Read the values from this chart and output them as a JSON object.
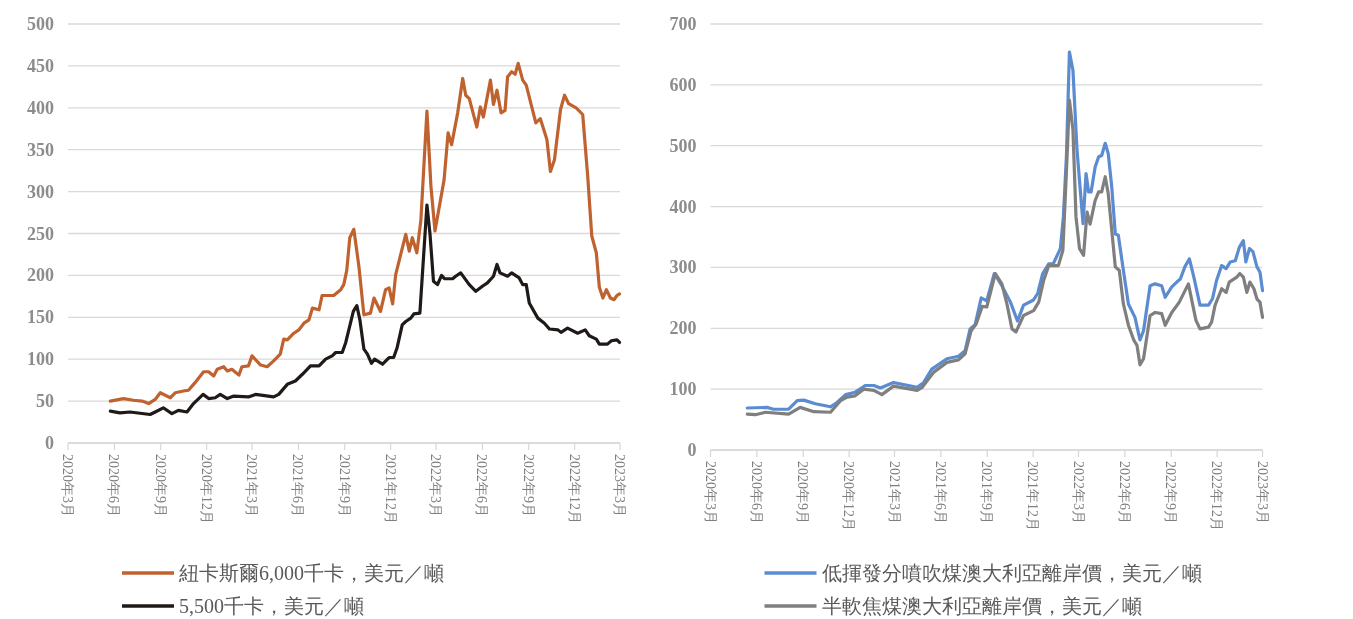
{
  "chart_data": [
    {
      "type": "line",
      "grid": "y",
      "legend": "bottom",
      "xlim": [
        "2020-03",
        "2023-03"
      ],
      "xticks": [
        {
          "value": "2020-03",
          "label": "2020年3月"
        },
        {
          "value": "2020-06",
          "label": "2020年6月"
        },
        {
          "value": "2020-09",
          "label": "2020年9月"
        },
        {
          "value": "2020-12",
          "label": "2020年12月"
        },
        {
          "value": "2021-03",
          "label": "2021年3月"
        },
        {
          "value": "2021-06",
          "label": "2021年6月"
        },
        {
          "value": "2021-09",
          "label": "2021年9月"
        },
        {
          "value": "2021-12",
          "label": "2021年12月"
        },
        {
          "value": "2022-03",
          "label": "2022年3月"
        },
        {
          "value": "2022-06",
          "label": "2022年6月"
        },
        {
          "value": "2022-09",
          "label": "2022年9月"
        },
        {
          "value": "2022-12",
          "label": "2022年12月"
        },
        {
          "value": "2023-03",
          "label": "2023年3月"
        }
      ],
      "ylim": [
        0,
        500
      ],
      "yticks": [
        0,
        50,
        100,
        150,
        200,
        250,
        300,
        350,
        400,
        450,
        500
      ],
      "series": [
        {
          "name": "紐卡斯爾6,000千卡，美元／噸",
          "color": "#c0622f",
          "x": [
            "2020-05-24",
            "2020-06-19",
            "2020-07-09",
            "2020-07-26",
            "2020-08-08",
            "2020-08-21",
            "2020-08-31",
            "2020-09-20",
            "2020-09-30",
            "2020-10-16",
            "2020-10-26",
            "2020-11-08",
            "2020-11-25",
            "2020-12-05",
            "2020-12-15",
            "2020-12-22",
            "2021-01-04",
            "2021-01-11",
            "2021-01-20",
            "2021-02-03",
            "2021-02-09",
            "2021-02-22",
            "2021-03-01",
            "2021-03-18",
            "2021-03-31",
            "2021-04-13",
            "2021-04-26",
            "2021-05-03",
            "2021-05-10",
            "2021-05-23",
            "2021-06-02",
            "2021-06-12",
            "2021-06-22",
            "2021-06-29",
            "2021-07-12",
            "2021-07-18",
            "2021-08-10",
            "2021-08-24",
            "2021-08-30",
            "2021-09-05",
            "2021-09-11",
            "2021-09-19",
            "2021-09-29",
            "2021-10-09",
            "2021-10-22",
            "2021-10-29",
            "2021-11-11",
            "2021-11-21",
            "2021-11-28",
            "2021-12-05",
            "2021-12-11",
            "2021-12-31",
            "2022-01-07",
            "2022-01-13",
            "2022-01-22",
            "2022-01-30",
            "2022-02-11",
            "2022-02-19",
            "2022-02-27",
            "2022-03-17",
            "2022-03-25",
            "2022-04-01",
            "2022-04-13",
            "2022-04-23",
            "2022-04-29",
            "2022-05-06",
            "2022-05-21",
            "2022-05-28",
            "2022-06-03",
            "2022-06-17",
            "2022-06-23",
            "2022-06-30",
            "2022-07-08",
            "2022-07-16",
            "2022-07-21",
            "2022-07-29",
            "2022-08-05",
            "2022-08-11",
            "2022-08-20",
            "2022-08-27",
            "2022-09-15",
            "2022-09-24",
            "2022-10-07",
            "2022-10-14",
            "2022-10-22",
            "2022-11-03",
            "2022-11-11",
            "2022-11-19",
            "2022-12-04",
            "2022-12-17",
            "2022-12-27",
            "2023-01-04",
            "2023-01-13",
            "2023-01-19",
            "2023-01-26",
            "2023-02-02",
            "2023-02-10",
            "2023-02-17",
            "2023-02-23",
            "2023-02-28"
          ],
          "values": [
            50,
            53,
            51,
            50,
            47,
            52,
            60,
            54,
            60,
            62,
            63,
            72,
            85,
            85,
            80,
            88,
            91,
            86,
            88,
            81,
            91,
            92,
            104,
            93,
            91,
            98,
            106,
            124,
            123,
            131,
            135,
            143,
            147,
            161,
            159,
            176,
            176,
            183,
            189,
            206,
            245,
            255,
            211,
            153,
            155,
            173,
            157,
            183,
            185,
            166,
            201,
            249,
            229,
            245,
            227,
            266,
            396,
            306,
            253,
            314,
            370,
            356,
            394,
            435,
            415,
            411,
            377,
            401,
            389,
            433,
            404,
            421,
            394,
            397,
            437,
            443,
            440,
            453,
            433,
            427,
            382,
            387,
            362,
            324,
            338,
            398,
            415,
            405,
            400,
            392,
            318,
            247,
            227,
            186,
            173,
            183,
            173,
            171,
            176,
            178
          ]
        },
        {
          "name": "5,500千卡，美元／噸",
          "color": "#1f1a17",
          "x": [
            "2020-05-24",
            "2020-06-12",
            "2020-07-02",
            "2020-08-11",
            "2020-08-21",
            "2020-09-06",
            "2020-09-23",
            "2020-10-06",
            "2020-10-23",
            "2020-11-05",
            "2020-11-24",
            "2020-12-05",
            "2020-12-18",
            "2020-12-28",
            "2021-01-11",
            "2021-01-24",
            "2021-02-22",
            "2021-03-08",
            "2021-04-13",
            "2021-04-23",
            "2021-05-10",
            "2021-05-26",
            "2021-06-09",
            "2021-06-25",
            "2021-07-12",
            "2021-07-25",
            "2021-08-07",
            "2021-08-14",
            "2021-08-27",
            "2021-09-03",
            "2021-09-18",
            "2021-09-25",
            "2021-10-01",
            "2021-10-09",
            "2021-10-16",
            "2021-10-24",
            "2021-10-30",
            "2021-11-15",
            "2021-11-28",
            "2021-12-07",
            "2021-12-14",
            "2021-12-24",
            "2021-12-31",
            "2022-01-10",
            "2022-01-16",
            "2022-01-28",
            "2022-02-11",
            "2022-02-17",
            "2022-02-24",
            "2022-03-04",
            "2022-03-12",
            "2022-03-18",
            "2022-04-03",
            "2022-04-09",
            "2022-04-19",
            "2022-05-06",
            "2022-05-19",
            "2022-06-01",
            "2022-06-11",
            "2022-06-23",
            "2022-06-30",
            "2022-07-06",
            "2022-07-21",
            "2022-07-29",
            "2022-08-13",
            "2022-08-20",
            "2022-08-27",
            "2022-09-02",
            "2022-09-19",
            "2022-10-02",
            "2022-10-12",
            "2022-10-29",
            "2022-11-04",
            "2022-11-17",
            "2022-12-07",
            "2022-12-22",
            "2022-12-30",
            "2023-01-13",
            "2023-01-19",
            "2023-02-04",
            "2023-02-12",
            "2023-02-23",
            "2023-02-28"
          ],
          "values": [
            38,
            36,
            37,
            34,
            37,
            42,
            35,
            39,
            37,
            47,
            58,
            53,
            54,
            58,
            53,
            56,
            55,
            58,
            55,
            58,
            70,
            74,
            82,
            92,
            92,
            100,
            104,
            108,
            108,
            120,
            157,
            164,
            147,
            112,
            106,
            95,
            100,
            94,
            102,
            102,
            114,
            141,
            145,
            149,
            154,
            155,
            284,
            250,
            193,
            189,
            200,
            196,
            196,
            199,
            203,
            189,
            181,
            187,
            191,
            199,
            213,
            203,
            199,
            203,
            197,
            189,
            189,
            167,
            149,
            143,
            136,
            135,
            132,
            137,
            131,
            135,
            128,
            124,
            118,
            118,
            122,
            123,
            120
          ]
        }
      ]
    },
    {
      "type": "line",
      "grid": "y",
      "legend": "bottom",
      "xlim": [
        "2020-03",
        "2023-03"
      ],
      "xticks": [
        {
          "value": "2020-03",
          "label": "2020年3月"
        },
        {
          "value": "2020-06",
          "label": "2020年6月"
        },
        {
          "value": "2020-09",
          "label": "2020年9月"
        },
        {
          "value": "2020-12",
          "label": "2020年12月"
        },
        {
          "value": "2021-03",
          "label": "2021年3月"
        },
        {
          "value": "2021-06",
          "label": "2021年6月"
        },
        {
          "value": "2021-09",
          "label": "2021年9月"
        },
        {
          "value": "2021-12",
          "label": "2021年12月"
        },
        {
          "value": "2022-03",
          "label": "2022年3月"
        },
        {
          "value": "2022-06",
          "label": "2022年6月"
        },
        {
          "value": "2022-09",
          "label": "2022年9月"
        },
        {
          "value": "2022-12",
          "label": "2022年12月"
        },
        {
          "value": "2023-03",
          "label": "2023年3月"
        }
      ],
      "ylim": [
        0,
        700
      ],
      "yticks": [
        0,
        100,
        200,
        300,
        400,
        500,
        600,
        700
      ],
      "series": [
        {
          "name": "低揮發分噴吹煤澳大利亞離岸價，美元／噸",
          "color": "#5b8bd0",
          "x": [
            "2020-05-13",
            "2020-06-21",
            "2020-07-04",
            "2020-08-03",
            "2020-08-20",
            "2020-09-02",
            "2020-09-25",
            "2020-10-25",
            "2020-11-07",
            "2020-11-24",
            "2020-12-13",
            "2021-01-02",
            "2021-01-19",
            "2021-02-01",
            "2021-02-27",
            "2021-04-15",
            "2021-04-28",
            "2021-05-14",
            "2021-06-13",
            "2021-07-06",
            "2021-07-19",
            "2021-07-29",
            "2021-08-08",
            "2021-08-20",
            "2021-08-31",
            "2021-09-15",
            "2021-09-30",
            "2021-10-17",
            "2021-10-31",
            "2021-11-12",
            "2021-12-01",
            "2021-12-10",
            "2021-12-20",
            "2022-01-01",
            "2022-01-10",
            "2022-01-24",
            "2022-01-30",
            "2022-02-05",
            "2022-02-11",
            "2022-02-18",
            "2022-02-26",
            "2022-03-10",
            "2022-03-16",
            "2022-03-21",
            "2022-03-26",
            "2022-04-03",
            "2022-04-10",
            "2022-04-16",
            "2022-04-23",
            "2022-04-29",
            "2022-05-06",
            "2022-05-13",
            "2022-05-19",
            "2022-05-28",
            "2022-06-08",
            "2022-06-21",
            "2022-07-01",
            "2022-07-08",
            "2022-07-21",
            "2022-07-31",
            "2022-08-13",
            "2022-08-20",
            "2022-09-02",
            "2022-09-12",
            "2022-09-19",
            "2022-09-28",
            "2022-10-07",
            "2022-10-15",
            "2022-10-28",
            "2022-11-14",
            "2022-11-22",
            "2022-11-30",
            "2022-12-10",
            "2022-12-19",
            "2022-12-27",
            "2023-01-06",
            "2023-01-14",
            "2023-01-22",
            "2023-01-27",
            "2023-02-03",
            "2023-02-10",
            "2023-02-18",
            "2023-02-24",
            "2023-03-01"
          ],
          "values": [
            69,
            70,
            67,
            67,
            81,
            82,
            76,
            71,
            78,
            91,
            95,
            106,
            106,
            102,
            111,
            103,
            111,
            133,
            150,
            154,
            163,
            199,
            206,
            250,
            245,
            290,
            270,
            243,
            212,
            238,
            246,
            257,
            290,
            306,
            306,
            331,
            383,
            482,
            654,
            624,
            493,
            372,
            454,
            424,
            424,
            465,
            482,
            484,
            504,
            487,
            432,
            355,
            353,
            301,
            240,
            218,
            181,
            196,
            270,
            273,
            270,
            251,
            268,
            276,
            281,
            301,
            314,
            287,
            238,
            238,
            249,
            279,
            303,
            298,
            309,
            311,
            333,
            344,
            309,
            331,
            326,
            301,
            292,
            262
          ]
        },
        {
          "name": "半軟焦煤澳大利亞離岸價，美元／噸",
          "color": "#7f7f7f",
          "x": [
            "2020-05-13",
            "2020-05-29",
            "2020-06-18",
            "2020-08-03",
            "2020-08-26",
            "2020-09-22",
            "2020-10-25",
            "2020-11-14",
            "2020-11-27",
            "2020-12-13",
            "2020-12-30",
            "2021-01-19",
            "2021-02-04",
            "2021-02-27",
            "2021-04-15",
            "2021-04-25",
            "2021-05-18",
            "2021-06-13",
            "2021-07-06",
            "2021-07-19",
            "2021-07-31",
            "2021-08-10",
            "2021-08-22",
            "2021-08-31",
            "2021-09-17",
            "2021-09-30",
            "2021-10-10",
            "2021-10-20",
            "2021-10-28",
            "2021-11-12",
            "2021-12-02",
            "2021-12-12",
            "2021-12-22",
            "2022-01-01",
            "2022-01-20",
            "2022-01-29",
            "2022-02-06",
            "2022-02-11",
            "2022-02-18",
            "2022-02-24",
            "2022-03-03",
            "2022-03-11",
            "2022-03-18",
            "2022-03-24",
            "2022-04-03",
            "2022-04-10",
            "2022-04-16",
            "2022-04-23",
            "2022-04-29",
            "2022-05-13",
            "2022-05-21",
            "2022-05-29",
            "2022-06-08",
            "2022-06-19",
            "2022-06-25",
            "2022-07-01",
            "2022-07-08",
            "2022-07-21",
            "2022-07-31",
            "2022-08-13",
            "2022-08-20",
            "2022-09-02",
            "2022-09-17",
            "2022-10-05",
            "2022-10-20",
            "2022-10-28",
            "2022-11-14",
            "2022-11-20",
            "2022-11-27",
            "2022-12-10",
            "2022-12-19",
            "2022-12-25",
            "2023-01-09",
            "2023-01-15",
            "2023-01-22",
            "2023-01-29",
            "2023-02-04",
            "2023-02-12",
            "2023-02-18",
            "2023-02-24",
            "2023-03-01"
          ],
          "values": [
            59,
            58,
            62,
            59,
            70,
            63,
            62,
            81,
            87,
            89,
            100,
            98,
            91,
            105,
            98,
            103,
            128,
            144,
            148,
            158,
            196,
            207,
            236,
            235,
            290,
            273,
            240,
            199,
            194,
            221,
            229,
            243,
            279,
            303,
            303,
            328,
            476,
            575,
            526,
            383,
            331,
            320,
            391,
            371,
            410,
            424,
            424,
            449,
            421,
            301,
            295,
            240,
            205,
            180,
            172,
            140,
            150,
            221,
            226,
            224,
            205,
            226,
            243,
            273,
            213,
            199,
            202,
            210,
            238,
            265,
            259,
            276,
            284,
            290,
            284,
            259,
            276,
            265,
            248,
            243,
            218
          ]
        }
      ]
    }
  ]
}
